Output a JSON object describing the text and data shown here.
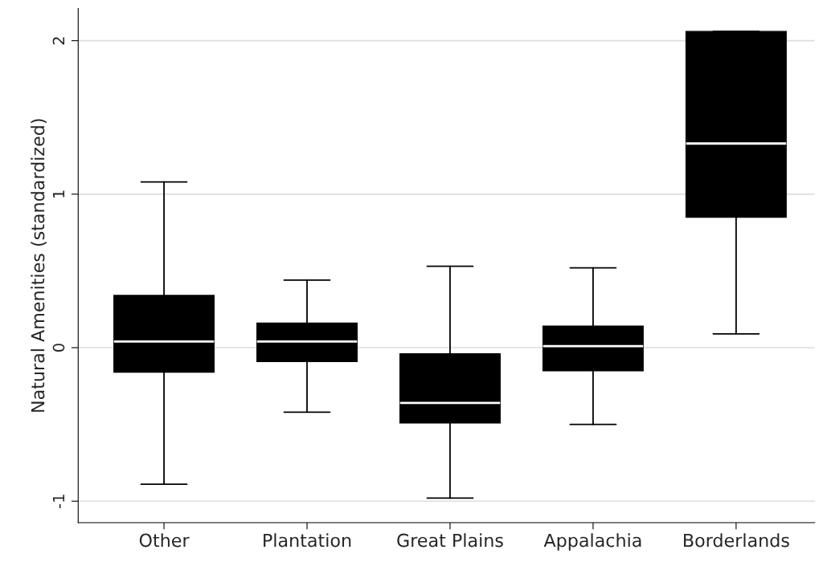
{
  "chart_data": {
    "type": "box",
    "ylabel": "Natural Amenities (standardized)",
    "categories": [
      "Other",
      "Plantation",
      "Great Plains",
      "Appalachia",
      "Borderlands"
    ],
    "boxes": [
      {
        "low": -0.89,
        "q1": -0.16,
        "median": 0.04,
        "q3": 0.34,
        "high": 1.08
      },
      {
        "low": -0.42,
        "q1": -0.09,
        "median": 0.04,
        "q3": 0.16,
        "high": 0.44
      },
      {
        "low": -0.98,
        "q1": -0.49,
        "median": -0.36,
        "q3": -0.04,
        "high": 0.53
      },
      {
        "low": -0.5,
        "q1": -0.15,
        "median": 0.01,
        "q3": 0.14,
        "high": 0.52
      },
      {
        "low": 0.09,
        "q1": 0.85,
        "median": 1.33,
        "q3": 2.06,
        "high": 2.06
      }
    ],
    "color": "#000000",
    "ylim": [
      -1.14,
      2.21
    ],
    "yticks": [
      -1,
      0,
      1,
      2
    ],
    "grid": "y"
  }
}
